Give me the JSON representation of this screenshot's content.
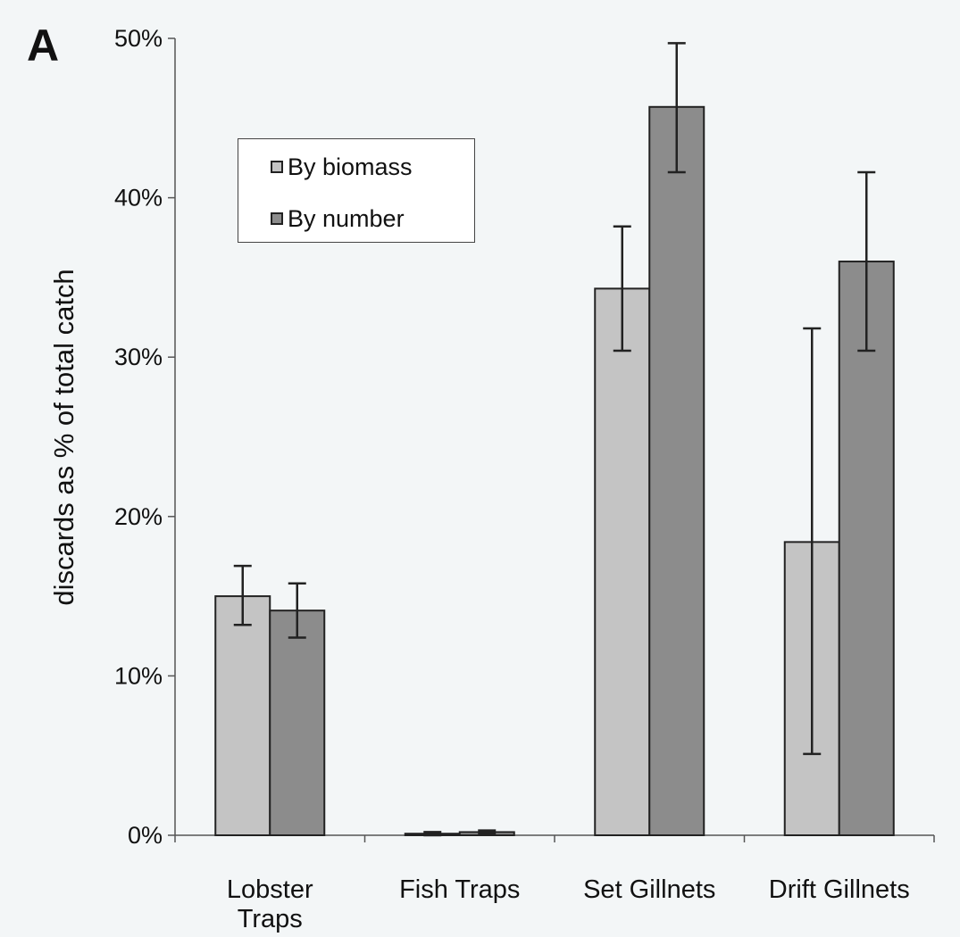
{
  "chart_data": {
    "type": "bar",
    "panel_label": "A",
    "title": "",
    "xlabel": "",
    "ylabel": "discards as % of total catch",
    "categories": [
      "Lobster Traps",
      "Fish Traps",
      "Set Gillnets",
      "Drift Gillnets"
    ],
    "category_lines": [
      [
        "Lobster",
        "Traps"
      ],
      [
        "Fish Traps"
      ],
      [
        "Set Gillnets"
      ],
      [
        "Drift Gillnets"
      ]
    ],
    "series": [
      {
        "name": "By biomass",
        "color": "#c4c4c4",
        "values": [
          15.0,
          0.1,
          34.3,
          18.4
        ],
        "error_low": [
          13.2,
          0.0,
          30.4,
          5.1
        ],
        "error_high": [
          16.9,
          0.2,
          38.2,
          31.8
        ]
      },
      {
        "name": "By number",
        "color": "#8c8c8c",
        "values": [
          14.1,
          0.2,
          45.7,
          36.0
        ],
        "error_low": [
          12.4,
          0.1,
          41.6,
          30.4
        ],
        "error_high": [
          15.8,
          0.3,
          49.7,
          41.6
        ]
      }
    ],
    "ylim": [
      0,
      50
    ],
    "yticks": [
      0,
      10,
      20,
      30,
      40,
      50
    ],
    "ytick_labels": [
      "0%",
      "10%",
      "20%",
      "30%",
      "40%",
      "50%"
    ],
    "grid": false,
    "legend_position": "top-left"
  }
}
